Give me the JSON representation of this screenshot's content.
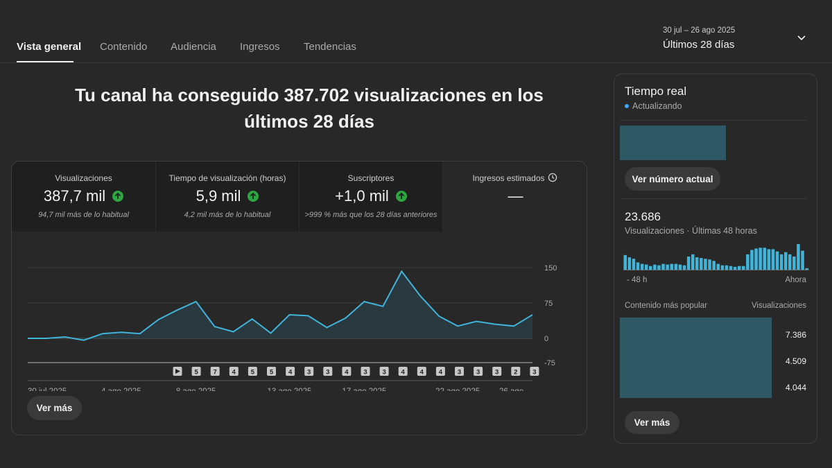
{
  "tabs": [
    {
      "label": "Vista general",
      "active": true
    },
    {
      "label": "Contenido",
      "active": false
    },
    {
      "label": "Audiencia",
      "active": false
    },
    {
      "label": "Ingresos",
      "active": false
    },
    {
      "label": "Tendencias",
      "active": false
    }
  ],
  "date_range": {
    "range": "30 jul – 26 ago 2025",
    "period": "Últimos 28 días",
    "icon": "chevron-down-icon"
  },
  "headline": "Tu canal ha conseguido 387.702 visualizaciones en los últimos 28 días",
  "metrics": [
    {
      "label": "Visualizaciones",
      "value": "387,7 mil",
      "trend": "up",
      "sub": "94,7 mil más de lo habitual"
    },
    {
      "label": "Tiempo de visualización (horas)",
      "value": "5,9 mil",
      "trend": "up",
      "sub": "4,2 mil más de lo habitual"
    },
    {
      "label": "Suscriptores",
      "value": "+1,0 mil",
      "trend": "up",
      "sub": ">999 % más que los 28 días anteriores"
    },
    {
      "label": "Ingresos estimados",
      "value": "—",
      "trend": "none",
      "sub": "",
      "icon": "clock-icon"
    }
  ],
  "chart_data": {
    "type": "line",
    "x": [
      "30 jul 2025",
      "31 jul",
      "1 ago",
      "2 ago",
      "3 ago",
      "4 ago 2025",
      "5 ago",
      "6 ago",
      "7 ago",
      "8 ago 2025",
      "9 ago",
      "10 ago",
      "11 ago",
      "12 ago",
      "13 ago 2025",
      "14 ago",
      "15 ago",
      "16 ago",
      "17 ago 2025",
      "18 ago",
      "19 ago",
      "20 ago",
      "21 ago",
      "22 ago 2025",
      "23 ago",
      "24 ago",
      "25 ago",
      "26 ago"
    ],
    "values": [
      0,
      0,
      3,
      -4,
      10,
      13,
      10,
      40,
      60,
      78,
      25,
      14,
      41,
      11,
      50,
      48,
      23,
      43,
      78,
      68,
      142,
      90,
      47,
      26,
      36,
      30,
      26,
      50
    ],
    "x_tick_labels": [
      "30 jul 2025",
      "4 ago 2025",
      "8 ago 2025",
      "13 ago 2025",
      "17 ago 2025",
      "22 ago 2025",
      "26 ago ..."
    ],
    "y_ticks": [
      "150",
      "75",
      "0",
      "-75"
    ],
    "ylim": [
      -75,
      150
    ],
    "grid": true,
    "line_color": "#41b4d9",
    "fill_color": "#2a3a42",
    "video_markers": [
      "play",
      "5",
      "7",
      "4",
      "5",
      "5",
      "4",
      "3",
      "3",
      "4",
      "3",
      "3",
      "4",
      "4",
      "4",
      "3",
      "3",
      "3",
      "2",
      "3"
    ]
  },
  "see_more_label": "Ver más",
  "realtime": {
    "title": "Tiempo real",
    "status": "Actualizando",
    "current_button": "Ver número actual",
    "count": "23.686",
    "count_label": "Visualizaciones · Últimas 48 horas",
    "axis_start": "- 48 h",
    "axis_end": "Ahora",
    "bar_color": "#41b4d9",
    "bars": [
      20,
      17,
      15,
      10,
      8,
      7,
      5,
      7,
      6,
      8,
      7,
      8,
      8,
      7,
      6,
      18,
      21,
      17,
      16,
      15,
      14,
      12,
      8,
      6,
      6,
      5,
      4,
      5,
      5,
      21,
      27,
      29,
      30,
      30,
      28,
      28,
      25,
      21,
      24,
      21,
      18,
      35,
      26,
      2
    ],
    "top_content_label": "Contenido más popular",
    "top_views_label": "Visualizaciones",
    "top_values": [
      "7.386",
      "4.509",
      "4.044"
    ],
    "see_more_label": "Ver más"
  }
}
